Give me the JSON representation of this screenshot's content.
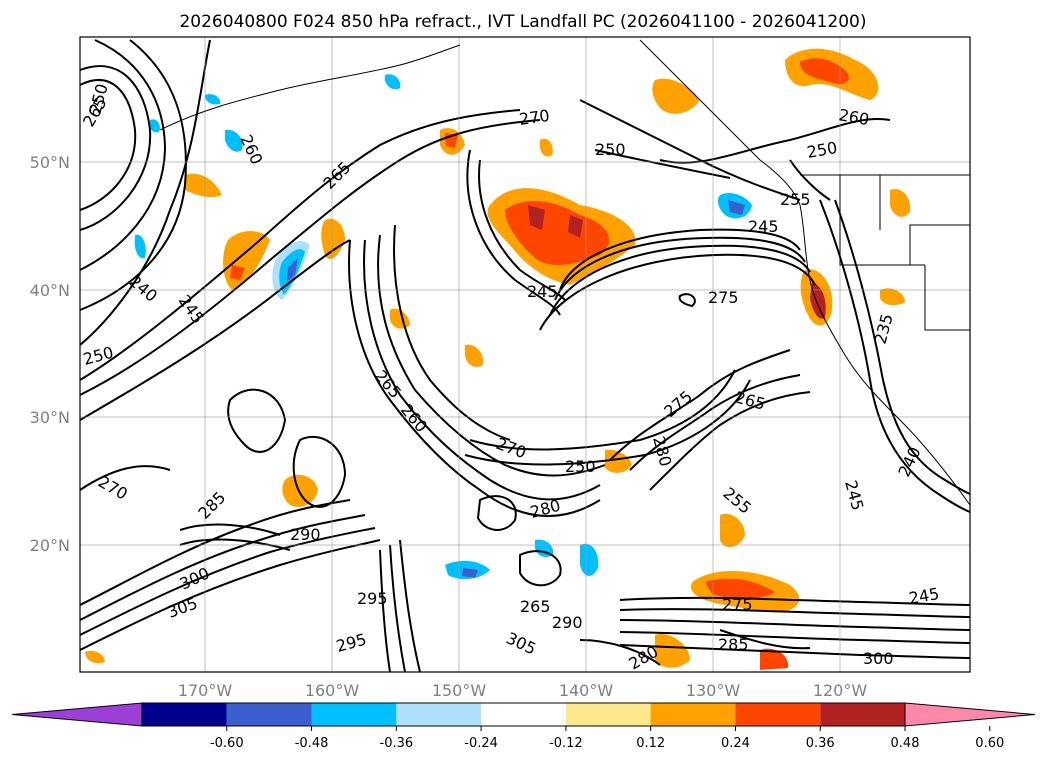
{
  "title": "2026040800 F024 850 hPa refract., IVT Landfall PC (2026041100 - 2026041200)",
  "lat_labels": [
    "50°N",
    "40°N",
    "30°N",
    "20°N"
  ],
  "lon_labels": [
    "170°W",
    "160°W",
    "150°W",
    "140°W",
    "130°W",
    "120°W"
  ],
  "contour_labels": [
    "270",
    "250",
    "250",
    "260",
    "265",
    "245",
    "245",
    "275",
    "265",
    "250",
    "240",
    "245",
    "250",
    "255",
    "235",
    "260",
    "265",
    "255",
    "245",
    "270",
    "285",
    "290",
    "300",
    "305",
    "295",
    "295",
    "280",
    "280",
    "275",
    "265",
    "290",
    "300",
    "305",
    "240",
    "245",
    "275",
    "265",
    "260",
    "270",
    "280",
    "285",
    "250"
  ],
  "colorbar": {
    "levels": [
      "-0.60",
      "-0.48",
      "-0.36",
      "-0.24",
      "-0.12",
      "0.12",
      "0.24",
      "0.36",
      "0.48",
      "0.60"
    ],
    "colors": [
      "#9b3fd6",
      "#000090",
      "#3b5fce",
      "#00bfff",
      "#aee0fa",
      "#ffffff",
      "#fde98c",
      "#ffa200",
      "#ff4600",
      "#b22222",
      "#ff88aa"
    ]
  }
}
